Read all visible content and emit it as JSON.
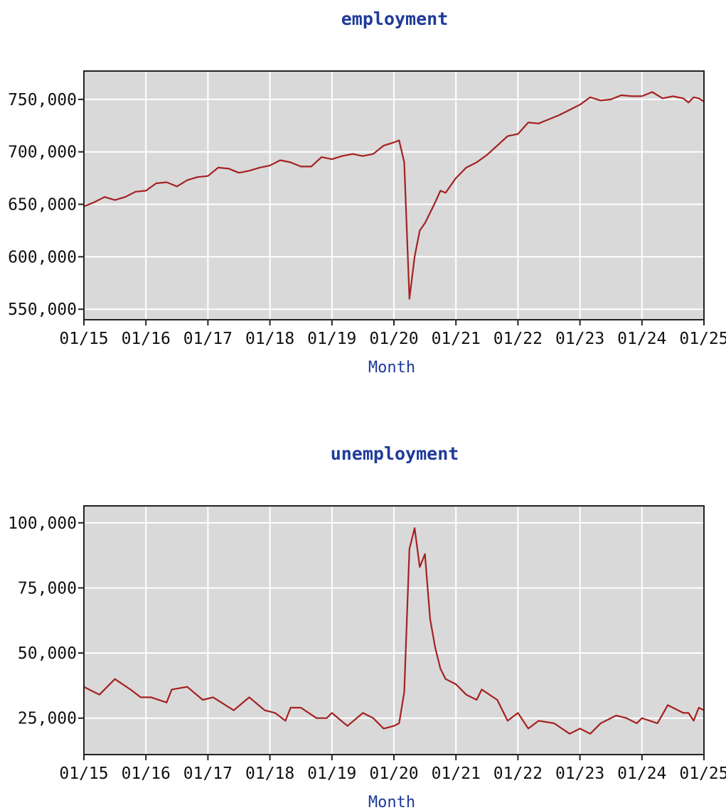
{
  "chart_data": [
    {
      "type": "line",
      "title": "employment",
      "xlabel": "Month",
      "ylabel": "",
      "ylim": [
        540000,
        777000
      ],
      "yticks": [
        550000,
        600000,
        650000,
        700000,
        750000
      ],
      "ytick_labels": [
        "550,000",
        "600,000",
        "650,000",
        "700,000",
        "750,000"
      ],
      "xticks": [
        "01/15",
        "01/16",
        "01/17",
        "01/18",
        "01/19",
        "01/20",
        "01/21",
        "01/22",
        "01/23",
        "01/24",
        "01/25"
      ],
      "grid": true,
      "line_color": "#a52020",
      "series": [
        {
          "values": [
            [
              "2015-01",
              648000
            ],
            [
              "2015-03",
              652000
            ],
            [
              "2015-05",
              657000
            ],
            [
              "2015-07",
              654000
            ],
            [
              "2015-09",
              657000
            ],
            [
              "2015-11",
              662000
            ],
            [
              "2016-01",
              663000
            ],
            [
              "2016-03",
              670000
            ],
            [
              "2016-05",
              671000
            ],
            [
              "2016-07",
              667000
            ],
            [
              "2016-09",
              673000
            ],
            [
              "2016-11",
              676000
            ],
            [
              "2017-01",
              677000
            ],
            [
              "2017-03",
              685000
            ],
            [
              "2017-05",
              684000
            ],
            [
              "2017-07",
              680000
            ],
            [
              "2017-09",
              682000
            ],
            [
              "2017-11",
              685000
            ],
            [
              "2018-01",
              687000
            ],
            [
              "2018-03",
              692000
            ],
            [
              "2018-05",
              690000
            ],
            [
              "2018-07",
              686000
            ],
            [
              "2018-09",
              686000
            ],
            [
              "2018-11",
              695000
            ],
            [
              "2019-01",
              693000
            ],
            [
              "2019-03",
              696000
            ],
            [
              "2019-05",
              698000
            ],
            [
              "2019-07",
              696000
            ],
            [
              "2019-09",
              698000
            ],
            [
              "2019-11",
              706000
            ],
            [
              "2020-01",
              709000
            ],
            [
              "2020-02",
              711000
            ],
            [
              "2020-03",
              690000
            ],
            [
              "2020-04",
              560000
            ],
            [
              "2020-05",
              600000
            ],
            [
              "2020-06",
              625000
            ],
            [
              "2020-07",
              632000
            ],
            [
              "2020-09",
              652000
            ],
            [
              "2020-10",
              663000
            ],
            [
              "2020-11",
              661000
            ],
            [
              "2020-12",
              668000
            ],
            [
              "2021-01",
              675000
            ],
            [
              "2021-03",
              685000
            ],
            [
              "2021-05",
              690000
            ],
            [
              "2021-07",
              697000
            ],
            [
              "2021-09",
              706000
            ],
            [
              "2021-11",
              715000
            ],
            [
              "2022-01",
              717000
            ],
            [
              "2022-03",
              728000
            ],
            [
              "2022-05",
              727000
            ],
            [
              "2022-07",
              731000
            ],
            [
              "2022-09",
              735000
            ],
            [
              "2022-11",
              740000
            ],
            [
              "2023-01",
              745000
            ],
            [
              "2023-03",
              752000
            ],
            [
              "2023-05",
              749000
            ],
            [
              "2023-07",
              750000
            ],
            [
              "2023-09",
              754000
            ],
            [
              "2023-11",
              753000
            ],
            [
              "2024-01",
              753000
            ],
            [
              "2024-03",
              757000
            ],
            [
              "2024-05",
              751000
            ],
            [
              "2024-07",
              753000
            ],
            [
              "2024-09",
              751000
            ],
            [
              "2024-10",
              747000
            ],
            [
              "2024-11",
              752000
            ],
            [
              "2024-12",
              751000
            ],
            [
              "2025-01",
              748000
            ]
          ]
        }
      ]
    },
    {
      "type": "line",
      "title": "unemployment",
      "xlabel": "Month",
      "ylabel": "",
      "ylim": [
        11000,
        106500
      ],
      "yticks": [
        25000,
        50000,
        75000,
        100000
      ],
      "ytick_labels": [
        "25,000",
        "50,000",
        "75,000",
        "100,000"
      ],
      "xticks": [
        "01/15",
        "01/16",
        "01/17",
        "01/18",
        "01/19",
        "01/20",
        "01/21",
        "01/22",
        "01/23",
        "01/24",
        "01/25"
      ],
      "grid": true,
      "line_color": "#a52020",
      "series": [
        {
          "values": [
            [
              "2015-01",
              37000
            ],
            [
              "2015-04",
              34000
            ],
            [
              "2015-07",
              40000
            ],
            [
              "2015-10",
              36000
            ],
            [
              "2015-12",
              33000
            ],
            [
              "2016-02",
              33000
            ],
            [
              "2016-05",
              31000
            ],
            [
              "2016-06",
              36000
            ],
            [
              "2016-09",
              37000
            ],
            [
              "2016-12",
              32000
            ],
            [
              "2017-02",
              33000
            ],
            [
              "2017-06",
              28000
            ],
            [
              "2017-09",
              33000
            ],
            [
              "2017-12",
              28000
            ],
            [
              "2018-02",
              27000
            ],
            [
              "2018-04",
              24000
            ],
            [
              "2018-05",
              29000
            ],
            [
              "2018-07",
              29000
            ],
            [
              "2018-10",
              25000
            ],
            [
              "2018-12",
              25000
            ],
            [
              "2019-01",
              27000
            ],
            [
              "2019-04",
              22000
            ],
            [
              "2019-07",
              27000
            ],
            [
              "2019-09",
              25000
            ],
            [
              "2019-11",
              21000
            ],
            [
              "2020-01",
              22000
            ],
            [
              "2020-02",
              23000
            ],
            [
              "2020-03",
              35000
            ],
            [
              "2020-04",
              90000
            ],
            [
              "2020-05",
              98000
            ],
            [
              "2020-06",
              83000
            ],
            [
              "2020-07",
              88000
            ],
            [
              "2020-08",
              63000
            ],
            [
              "2020-09",
              52000
            ],
            [
              "2020-10",
              44000
            ],
            [
              "2020-11",
              40000
            ],
            [
              "2021-01",
              38000
            ],
            [
              "2021-03",
              34000
            ],
            [
              "2021-05",
              32000
            ],
            [
              "2021-06",
              36000
            ],
            [
              "2021-09",
              32000
            ],
            [
              "2021-11",
              24000
            ],
            [
              "2022-01",
              27000
            ],
            [
              "2022-03",
              21000
            ],
            [
              "2022-05",
              24000
            ],
            [
              "2022-08",
              23000
            ],
            [
              "2022-11",
              19000
            ],
            [
              "2023-01",
              21000
            ],
            [
              "2023-03",
              19000
            ],
            [
              "2023-05",
              23000
            ],
            [
              "2023-08",
              26000
            ],
            [
              "2023-10",
              25000
            ],
            [
              "2023-12",
              23000
            ],
            [
              "2024-01",
              25000
            ],
            [
              "2024-04",
              23000
            ],
            [
              "2024-06",
              30000
            ],
            [
              "2024-09",
              27000
            ],
            [
              "2024-10",
              27000
            ],
            [
              "2024-11",
              24000
            ],
            [
              "2024-12",
              29000
            ],
            [
              "2025-01",
              28000
            ]
          ]
        }
      ]
    }
  ]
}
